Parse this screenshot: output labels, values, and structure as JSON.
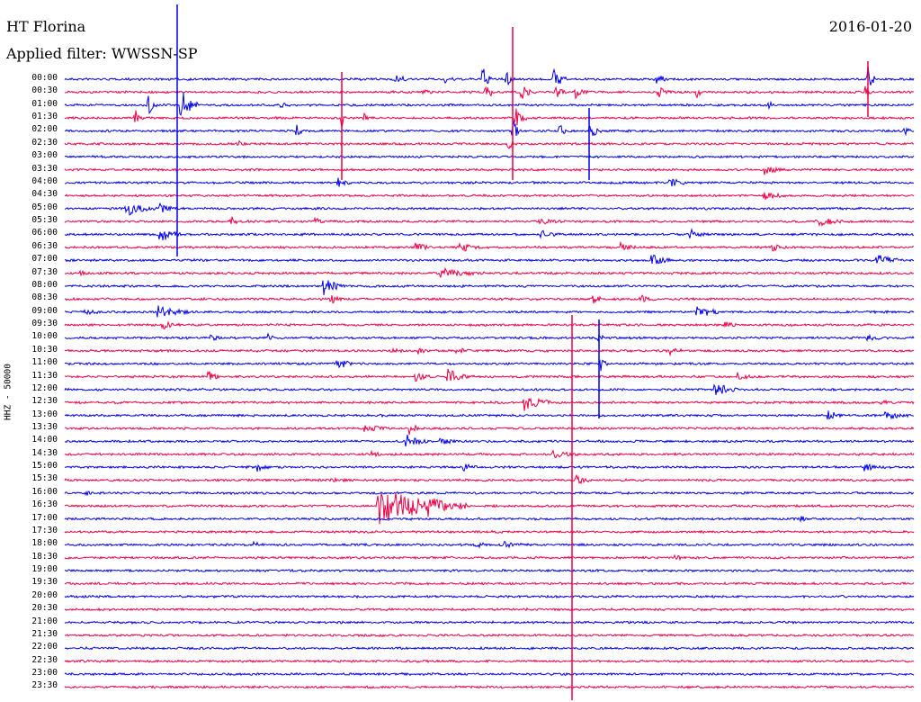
{
  "header": {
    "station": "HT Florina",
    "date": "2016-01-20",
    "filter": "Applied filter: WWSSN-SP"
  },
  "side_label": "HHZ - 50000",
  "time_labels": [
    "00:00",
    "00:30",
    "01:00",
    "01:30",
    "02:00",
    "02:30",
    "03:00",
    "03:30",
    "04:00",
    "04:30",
    "05:00",
    "05:30",
    "06:00",
    "06:30",
    "07:00",
    "07:30",
    "08:00",
    "08:30",
    "09:00",
    "09:30",
    "10:00",
    "10:30",
    "11:00",
    "11:30",
    "12:00",
    "12:30",
    "13:00",
    "13:30",
    "14:00",
    "14:30",
    "15:00",
    "15:30",
    "16:00",
    "16:30",
    "17:00",
    "17:30",
    "18:00",
    "18:30",
    "19:00",
    "19:30",
    "20:00",
    "20:30",
    "21:00",
    "21:30",
    "22:00",
    "22:30",
    "23:00",
    "23:30"
  ],
  "colors": {
    "even_trace": "#0000ee",
    "odd_trace": "#ee0044"
  }
}
